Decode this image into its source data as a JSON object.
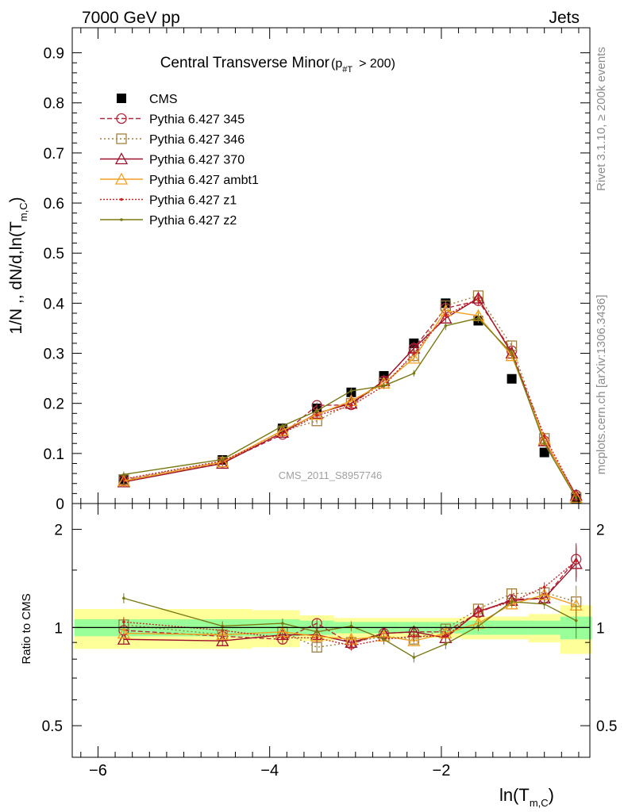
{
  "header": {
    "left": "7000 GeV pp",
    "right": "Jets"
  },
  "side_labels": {
    "rivet": "Rivet 3.1.10, ≥ 200k events",
    "mcplots": "mcplots.cern.ch [arXiv:1306.3436]"
  },
  "watermark": "CMS_2011_S8957746",
  "chart_data": [
    {
      "type": "line",
      "title": "Central Transverse Minor",
      "title_sub": {
        "p": "p",
        "sub": "#T",
        "cut": "> 200)"
      },
      "ylabel": "1/N ,, dN/d,ln(T",
      "ylabel_sub": "m,C",
      "xlabel": "ln(T",
      "xlabel_sub": "m,C",
      "xlim": [
        -6.3,
        -0.27
      ],
      "ylim": [
        0,
        0.95
      ],
      "x_ticks": [
        -6,
        -4,
        -2
      ],
      "x_tick_labels": [
        "−6",
        "−4",
        "−2"
      ],
      "y_ticks": [
        0,
        0.1,
        0.2,
        0.3,
        0.4,
        0.5,
        0.6,
        0.7,
        0.8,
        0.9
      ],
      "y_tick_labels": [
        "0",
        "0.1",
        "0.2",
        "0.3",
        "0.4",
        "0.5",
        "0.6",
        "0.7",
        "0.8",
        "0.9"
      ],
      "legend_position": "top-left",
      "x": [
        -5.7,
        -4.55,
        -3.85,
        -3.45,
        -3.05,
        -2.67,
        -2.32,
        -1.95,
        -1.57,
        -1.18,
        -0.8,
        -0.43
      ],
      "series": [
        {
          "name": "CMS",
          "color": "#000000",
          "marker": "square",
          "values": [
            0.047,
            0.087,
            0.15,
            0.19,
            0.222,
            0.255,
            0.32,
            0.4,
            0.365,
            0.249,
            0.102,
            0.01
          ]
        },
        {
          "name": "Pythia 6.427 345",
          "color": "#b3283c",
          "marker": "circle",
          "dash": "6,3",
          "values": [
            0.046,
            0.082,
            0.138,
            0.196,
            0.197,
            0.245,
            0.31,
            0.39,
            0.405,
            0.305,
            0.125,
            0.017
          ]
        },
        {
          "name": "Pythia 6.427 346",
          "color": "#a07f3c",
          "marker": "square-open",
          "dash": "2,3",
          "values": [
            0.048,
            0.083,
            0.145,
            0.165,
            0.2,
            0.24,
            0.295,
            0.395,
            0.415,
            0.315,
            0.13,
            0.012
          ]
        },
        {
          "name": "Pythia 6.427 370",
          "color": "#9b1028",
          "marker": "triangle",
          "dash": "",
          "values": [
            0.043,
            0.08,
            0.142,
            0.18,
            0.2,
            0.245,
            0.31,
            0.37,
            0.41,
            0.3,
            0.125,
            0.016
          ]
        },
        {
          "name": "Pythia 6.427 ambt1",
          "color": "#f0a020",
          "marker": "triangle",
          "dash": "",
          "values": [
            0.045,
            0.083,
            0.146,
            0.178,
            0.205,
            0.24,
            0.29,
            0.385,
            0.375,
            0.295,
            0.128,
            0.012
          ]
        },
        {
          "name": "Pythia 6.427 z1",
          "color": "#cc2222",
          "marker": "dot",
          "dash": "2,2",
          "values": [
            0.049,
            0.085,
            0.14,
            0.176,
            0.195,
            0.235,
            0.3,
            0.375,
            0.41,
            0.3,
            0.135,
            0.016
          ]
        },
        {
          "name": "Pythia 6.427 z2",
          "color": "#7a7a14",
          "marker": "dot",
          "dash": "",
          "values": [
            0.058,
            0.088,
            0.155,
            0.185,
            0.225,
            0.235,
            0.26,
            0.355,
            0.37,
            0.3,
            0.12,
            0.011
          ]
        }
      ]
    },
    {
      "type": "line",
      "ylabel": "Ratio to CMS",
      "ylim": [
        0.4,
        2.4
      ],
      "y_scale": "log",
      "y_ticks": [
        0.5,
        1,
        2
      ],
      "y_tick_labels": [
        "0.5",
        "1",
        "2"
      ],
      "band_inner": [
        0.06,
        0.06,
        0.06,
        0.05,
        0.04,
        0.04,
        0.04,
        0.04,
        0.05,
        0.05,
        0.05,
        0.08
      ],
      "band_outer": [
        0.14,
        0.14,
        0.13,
        0.09,
        0.07,
        0.07,
        0.07,
        0.07,
        0.08,
        0.08,
        0.1,
        0.17
      ],
      "series": [
        {
          "name": "Pythia 6.427 345",
          "values": [
            0.98,
            0.94,
            0.92,
            1.03,
            0.89,
            0.96,
            0.97,
            0.97,
            1.11,
            1.22,
            1.23,
            1.62
          ]
        },
        {
          "name": "Pythia 6.427 346",
          "values": [
            1.02,
            0.95,
            0.97,
            0.87,
            0.9,
            0.94,
            0.92,
            0.99,
            1.14,
            1.27,
            1.28,
            1.2
          ]
        },
        {
          "name": "Pythia 6.427 370",
          "values": [
            0.92,
            0.91,
            0.95,
            0.95,
            0.9,
            0.96,
            0.97,
            0.93,
            1.12,
            1.21,
            1.23,
            1.57
          ]
        },
        {
          "name": "Pythia 6.427 ambt1",
          "values": [
            0.96,
            0.95,
            0.97,
            0.94,
            0.92,
            0.94,
            0.91,
            0.96,
            1.03,
            1.18,
            1.26,
            1.17
          ]
        },
        {
          "name": "Pythia 6.427 z1",
          "values": [
            1.04,
            0.98,
            0.93,
            0.93,
            0.88,
            0.92,
            0.94,
            0.94,
            1.12,
            1.2,
            1.33,
            1.6
          ]
        },
        {
          "name": "Pythia 6.427 z2",
          "values": [
            1.23,
            1.01,
            1.03,
            0.97,
            1.01,
            0.92,
            0.81,
            0.89,
            1.01,
            1.2,
            1.18,
            1.05
          ]
        }
      ]
    }
  ]
}
